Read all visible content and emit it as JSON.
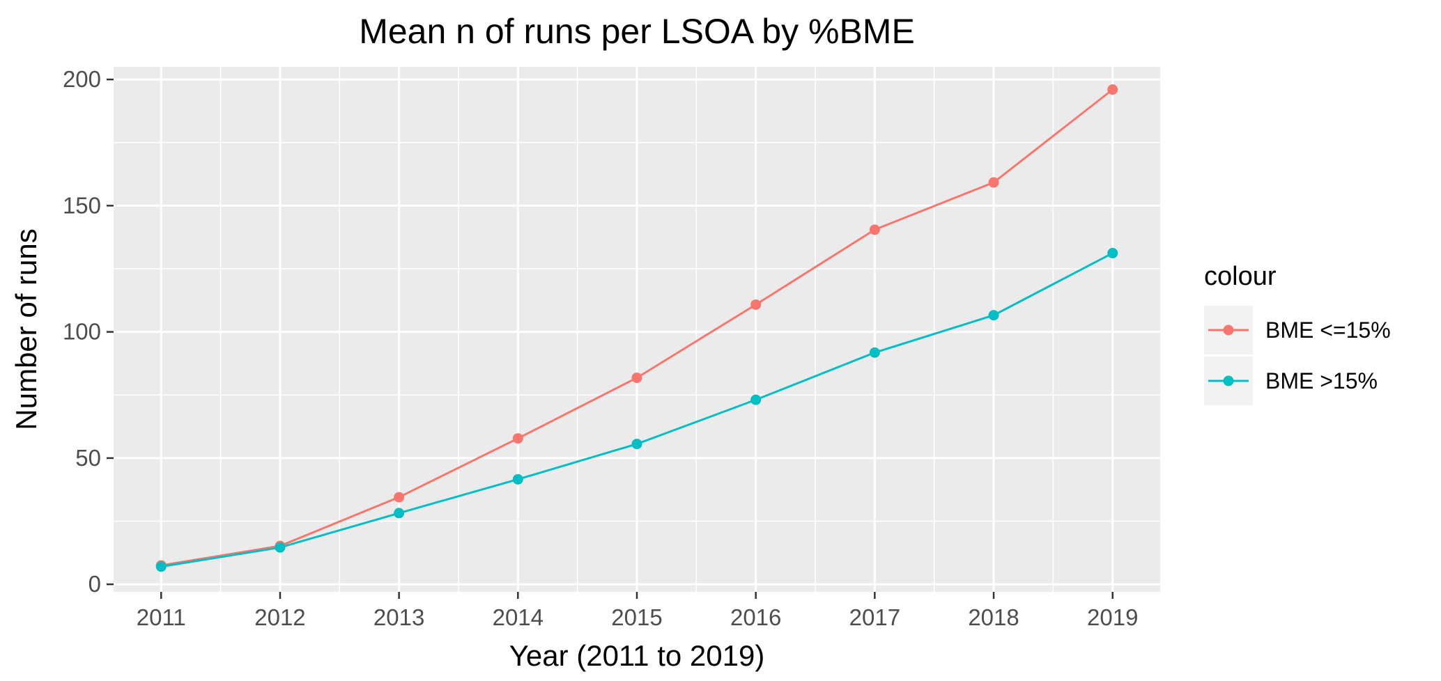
{
  "chart_data": {
    "type": "line",
    "title": "Mean n of runs per LSOA by %BME",
    "xlabel": "Year (2011 to 2019)",
    "ylabel": "Number of runs",
    "x": [
      2011,
      2012,
      2013,
      2014,
      2015,
      2016,
      2017,
      2018,
      2019
    ],
    "x_tick_labels": [
      "2011",
      "2012",
      "2013",
      "2014",
      "2015",
      "2016",
      "2017",
      "2018",
      "2019"
    ],
    "y_ticks": [
      0,
      50,
      100,
      150,
      200
    ],
    "y_tick_labels": [
      "0",
      "50",
      "100",
      "150",
      "200"
    ],
    "xlim": [
      2010.6,
      2019.4
    ],
    "ylim": [
      -3,
      205
    ],
    "grid": true,
    "legend": {
      "title": "colour",
      "position": "right"
    },
    "series": [
      {
        "name": "BME <=15%",
        "color": "#F8766D",
        "values": [
          7.5,
          15.2,
          34.5,
          57.8,
          81.8,
          110.8,
          140.5,
          159.2,
          196.0
        ]
      },
      {
        "name": "BME >15%",
        "color": "#00BFC4",
        "values": [
          7.0,
          14.6,
          28.2,
          41.6,
          55.6,
          73.1,
          91.8,
          106.6,
          131.2
        ]
      }
    ]
  }
}
